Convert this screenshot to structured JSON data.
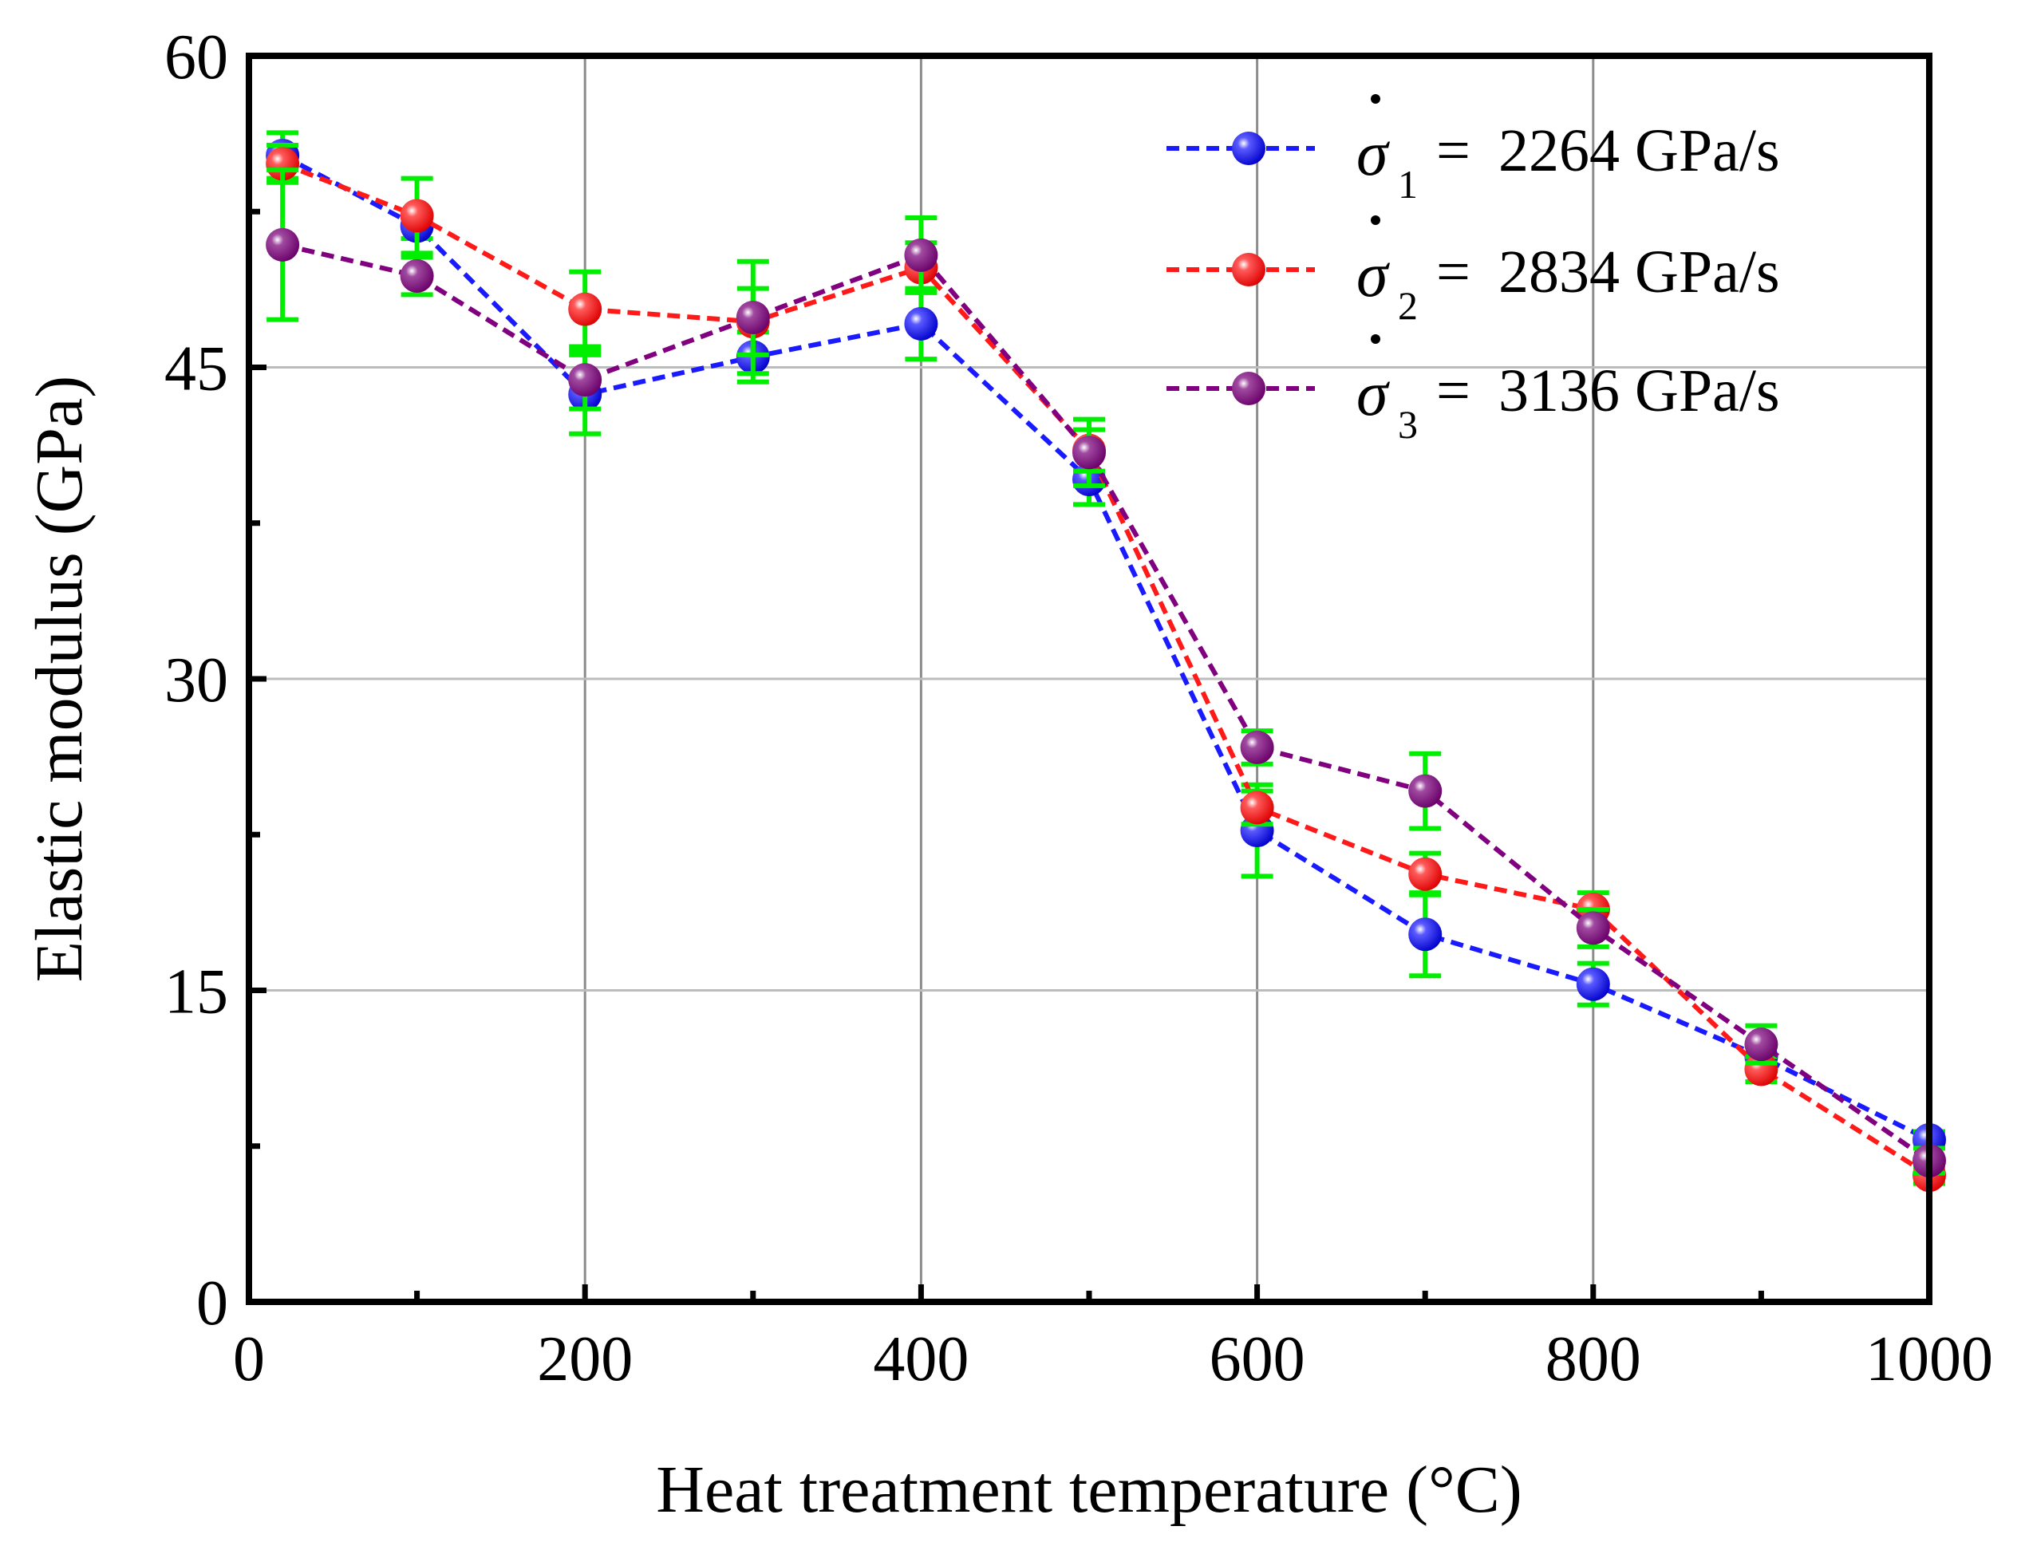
{
  "chart_data": {
    "type": "line",
    "title": "",
    "xlabel": "Heat treatment temperature (°C)",
    "ylabel": "Elastic modulus (GPa)",
    "xlim": [
      0,
      1000
    ],
    "ylim": [
      0,
      60
    ],
    "xticks": [
      0,
      200,
      400,
      600,
      800,
      1000
    ],
    "yticks": [
      0,
      15,
      30,
      45,
      60
    ],
    "x_minor_ticks": [
      100,
      300,
      500,
      700,
      900
    ],
    "y_minor_ticks": [
      7.5,
      22.5,
      37.5,
      52.5
    ],
    "x_tick_labels": [
      "0",
      "200",
      "400",
      "600",
      "800",
      "1000"
    ],
    "y_tick_labels": [
      "0",
      "15",
      "30",
      "45",
      "60"
    ],
    "grid": true,
    "legend_position": "top-right",
    "error_bar_color": "#00ee00",
    "x": [
      20,
      100,
      200,
      300,
      400,
      500,
      600,
      700,
      800,
      900,
      1000
    ],
    "series": [
      {
        "name": "2264 GPa/s",
        "symbol": "σ",
        "subscript": "1",
        "prefix": "= ",
        "color": "#0000ff",
        "line_color": "#1a1aff",
        "values": [
          55.2,
          51.8,
          43.7,
          45.5,
          47.1,
          39.6,
          22.7,
          17.7,
          15.3,
          11.8,
          7.8
        ],
        "errors": [
          1.1,
          0.6,
          1.9,
          1.2,
          1.7,
          1.2,
          2.2,
          2.0,
          1.0,
          0.5,
          0.4
        ]
      },
      {
        "name": "2834 GPa/s",
        "symbol": "σ",
        "subscript": "2",
        "prefix": "= ",
        "color": "#ff0000",
        "line_color": "#ff1a1a",
        "values": [
          54.8,
          52.3,
          47.8,
          47.2,
          49.8,
          41.0,
          23.8,
          20.6,
          18.9,
          11.2,
          6.1
        ],
        "errors": [
          0.9,
          1.8,
          1.8,
          1.6,
          1.2,
          1.0,
          0.8,
          1.0,
          0.8,
          0.6,
          0.4
        ]
      },
      {
        "name": "3136 GPa/s",
        "symbol": "σ",
        "subscript": "3",
        "prefix": "= ",
        "color": "#800080",
        "line_color": "#800080",
        "values": [
          50.9,
          49.4,
          44.4,
          47.4,
          50.4,
          40.9,
          26.7,
          24.6,
          18.0,
          12.4,
          6.8
        ],
        "errors": [
          3.6,
          0.9,
          1.4,
          2.7,
          1.8,
          1.6,
          0.8,
          1.8,
          0.9,
          0.9,
          0.6
        ]
      }
    ]
  }
}
